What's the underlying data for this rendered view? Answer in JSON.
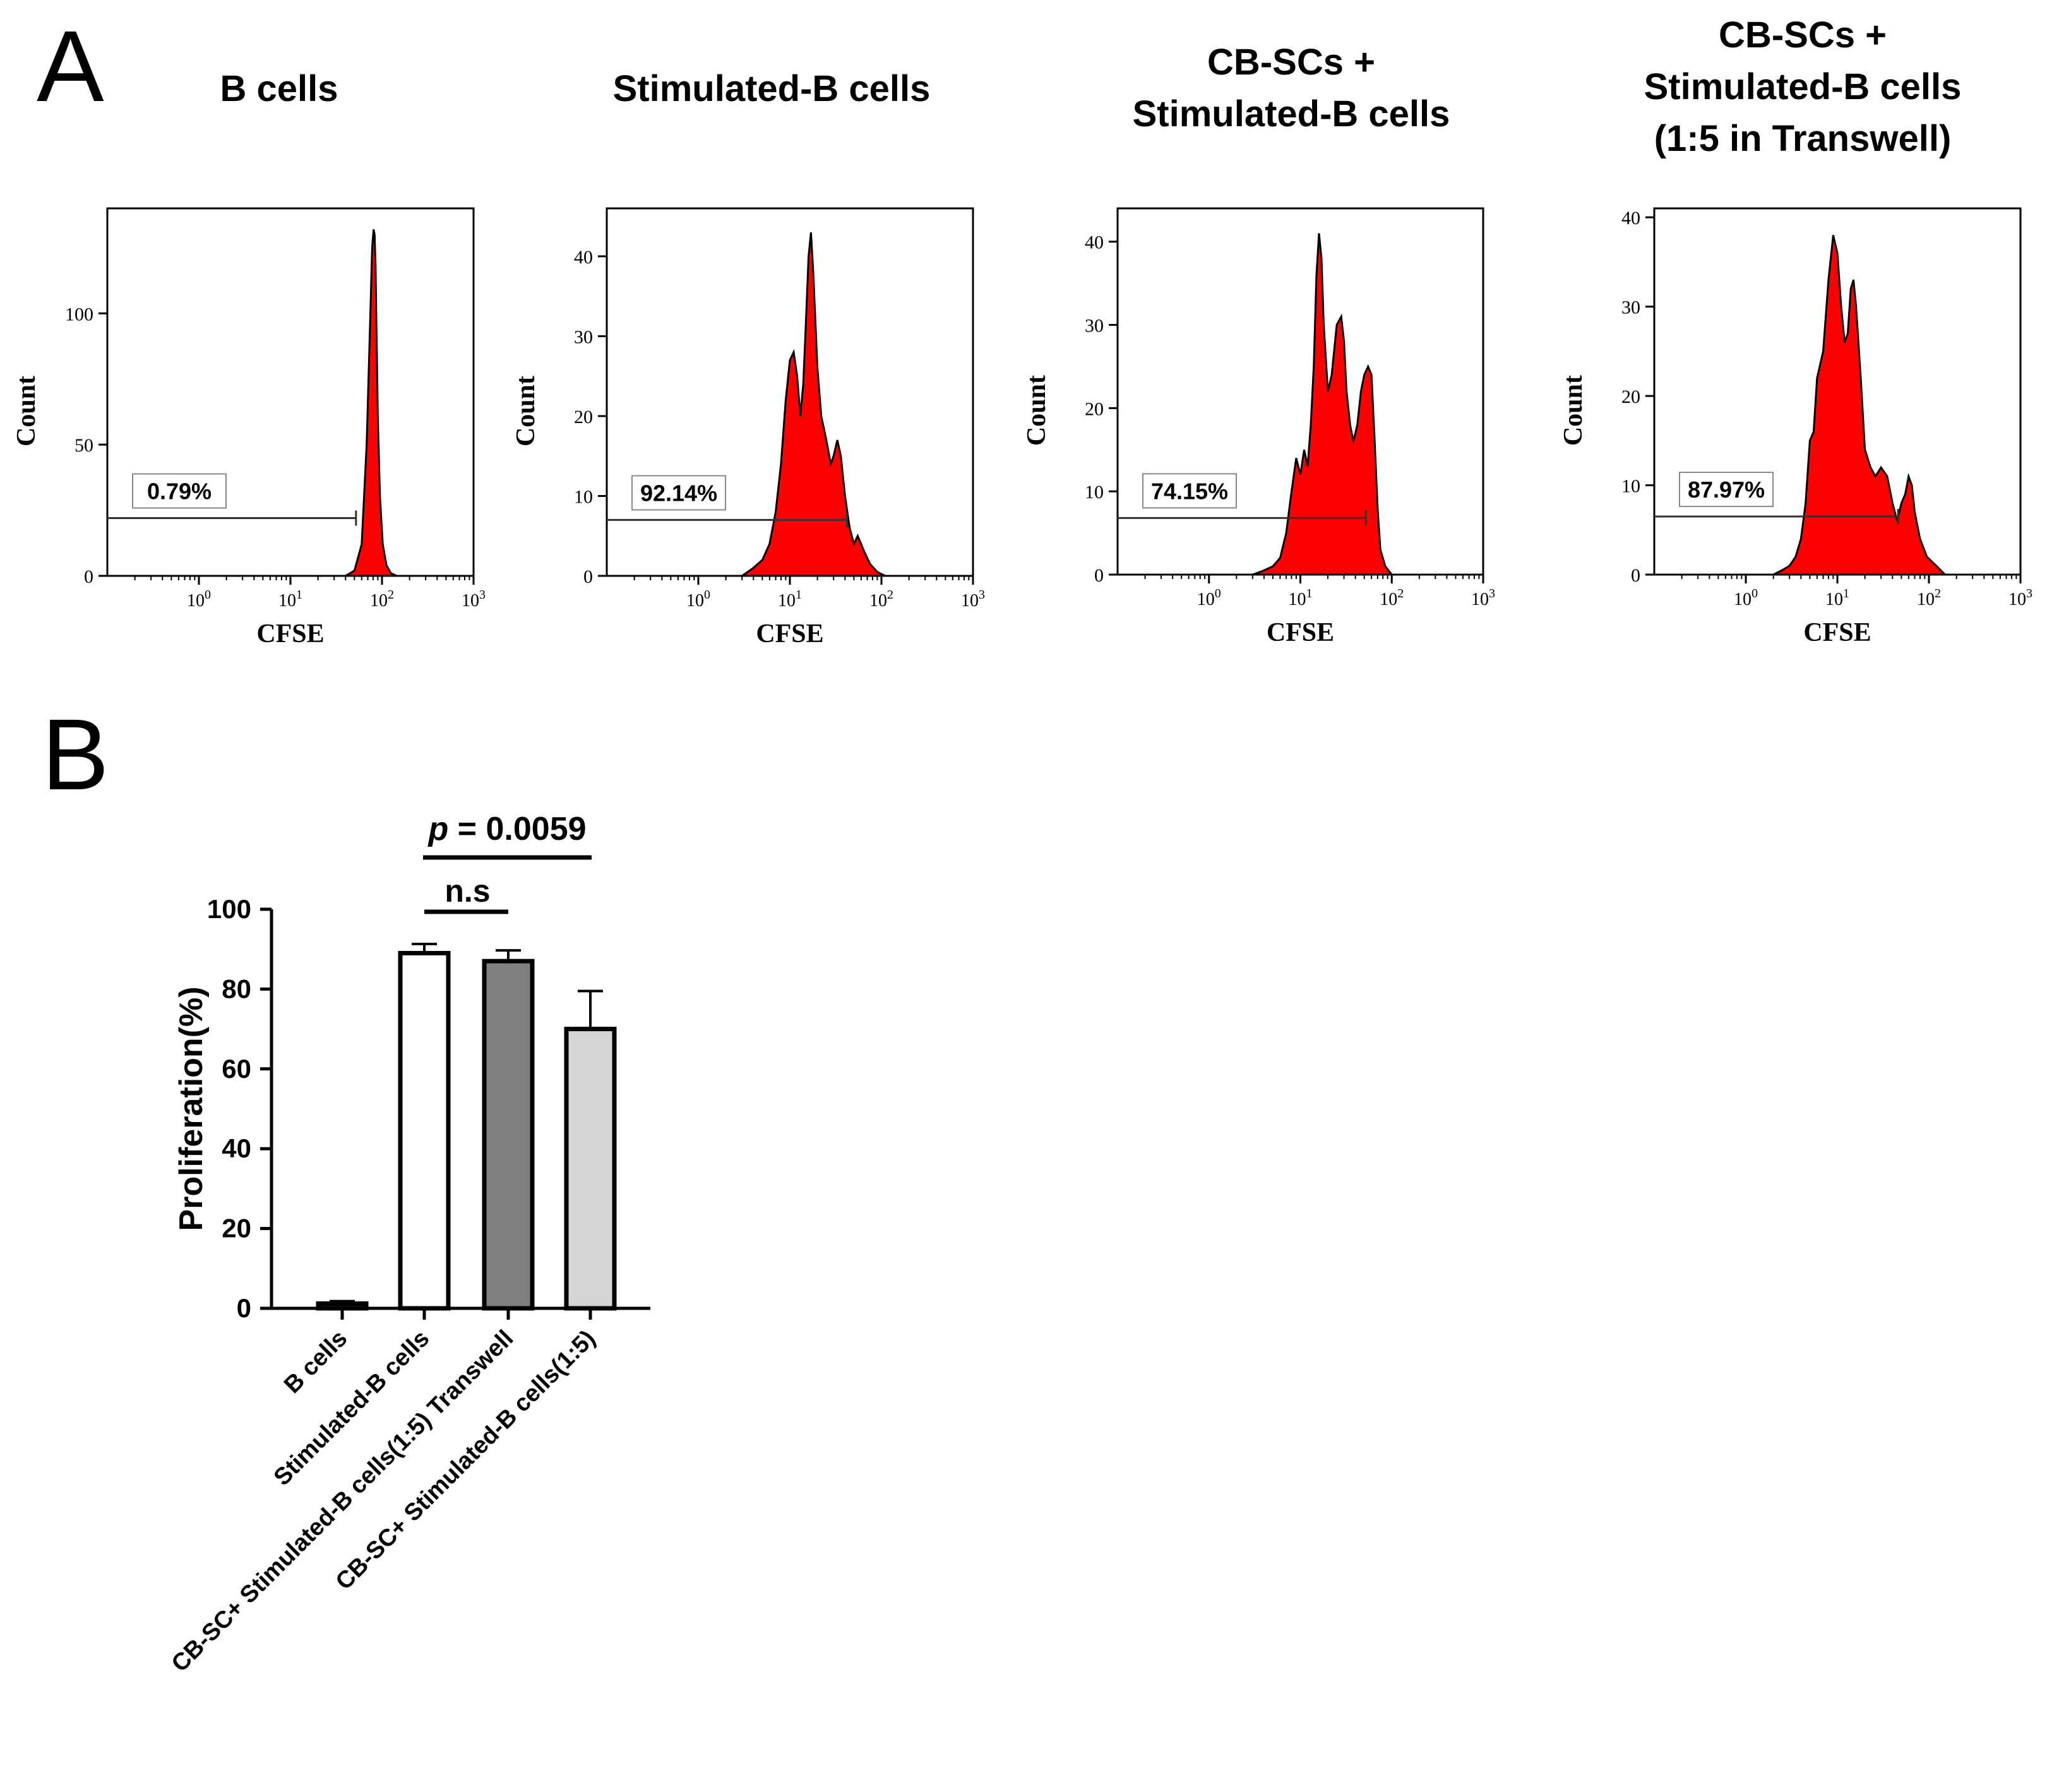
{
  "figure": {
    "panel_a_label": "A",
    "panel_b_label": "B"
  },
  "chart_data": [
    {
      "type": "area",
      "id": "hist1",
      "title": [
        "B cells"
      ],
      "xlabel": "CFSE",
      "ylabel": "Count",
      "x_scale": "log",
      "xlim": [
        0.1,
        1000
      ],
      "x_ticks": [
        1,
        10,
        100,
        1000
      ],
      "x_tick_labels": [
        [
          "10",
          "0"
        ],
        [
          "10",
          "1"
        ],
        [
          "10",
          "2"
        ],
        [
          "10",
          "3"
        ]
      ],
      "ylim": [
        0,
        140
      ],
      "y_ticks": [
        0,
        50,
        100
      ],
      "series": [
        {
          "name": "Count",
          "color": "#ff0000",
          "x": [
            40,
            50,
            60,
            68,
            74,
            78,
            81,
            83,
            85,
            87,
            90,
            95,
            102,
            112,
            125,
            145
          ],
          "y": [
            0,
            2,
            12,
            50,
            95,
            125,
            132,
            130,
            118,
            95,
            60,
            30,
            12,
            4,
            1,
            0
          ]
        }
      ],
      "gate": {
        "label": "0.79%",
        "x_start": 0.1,
        "x_end": 52,
        "y": 22
      }
    },
    {
      "type": "area",
      "id": "hist2",
      "title": [
        "Stimulated-B cells"
      ],
      "xlabel": "CFSE",
      "ylabel": "Count",
      "x_scale": "log",
      "xlim": [
        0.1,
        1000
      ],
      "x_ticks": [
        1,
        10,
        100,
        1000
      ],
      "x_tick_labels": [
        [
          "10",
          "0"
        ],
        [
          "10",
          "1"
        ],
        [
          "10",
          "2"
        ],
        [
          "10",
          "3"
        ]
      ],
      "ylim": [
        0,
        46
      ],
      "y_ticks": [
        0,
        10,
        20,
        30,
        40
      ],
      "series": [
        {
          "name": "Count",
          "color": "#ff0000",
          "x": [
            3,
            4,
            5,
            6,
            7,
            8,
            9,
            10,
            11,
            12,
            13,
            14,
            15,
            16,
            17,
            18,
            20,
            22,
            25,
            28,
            30,
            33,
            36,
            40,
            45,
            50,
            55,
            60,
            65,
            75,
            90,
            110
          ],
          "y": [
            0,
            1,
            2,
            4,
            8,
            14,
            22,
            27,
            28,
            25,
            20,
            24,
            32,
            40,
            43,
            38,
            26,
            20,
            17,
            14,
            15,
            17,
            15,
            10,
            6,
            4,
            5,
            4,
            3,
            1.5,
            0.5,
            0
          ]
        }
      ],
      "gate": {
        "label": "92.14%",
        "x_start": 0.1,
        "x_end": 42,
        "y": 7
      }
    },
    {
      "type": "area",
      "id": "hist3",
      "title": [
        "CB-SCs +",
        "Stimulated-B cells"
      ],
      "xlabel": "CFSE",
      "ylabel": "Count",
      "x_scale": "log",
      "xlim": [
        0.1,
        1000
      ],
      "x_ticks": [
        1,
        10,
        100,
        1000
      ],
      "x_tick_labels": [
        [
          "10",
          "0"
        ],
        [
          "10",
          "1"
        ],
        [
          "10",
          "2"
        ],
        [
          "10",
          "3"
        ]
      ],
      "ylim": [
        0,
        44
      ],
      "y_ticks": [
        0,
        10,
        20,
        30,
        40
      ],
      "series": [
        {
          "name": "Count",
          "color": "#ff0000",
          "x": [
            3,
            4,
            5,
            6,
            7,
            8,
            9,
            10,
            11,
            12,
            13,
            14,
            15,
            16,
            17,
            18,
            20,
            22,
            25,
            28,
            30,
            32,
            35,
            38,
            42,
            46,
            50,
            55,
            60,
            65,
            70,
            75,
            85,
            100
          ],
          "y": [
            0,
            0.5,
            1,
            2,
            5,
            10,
            14,
            12,
            15,
            13,
            18,
            25,
            36,
            41,
            38,
            30,
            22,
            24,
            30,
            31,
            28,
            22,
            18,
            16,
            18,
            22,
            24,
            25,
            24,
            16,
            8,
            3,
            1,
            0
          ]
        }
      ],
      "gate": {
        "label": "74.15%",
        "x_start": 0.1,
        "x_end": 52,
        "y": 6.8
      }
    },
    {
      "type": "area",
      "id": "hist4",
      "title": [
        "CB-SCs +",
        "Stimulated-B cells",
        "(1:5 in Transwell)"
      ],
      "xlabel": "CFSE",
      "ylabel": "Count",
      "x_scale": "log",
      "xlim": [
        0.1,
        1000
      ],
      "x_ticks": [
        1,
        10,
        100,
        1000
      ],
      "x_tick_labels": [
        [
          "10",
          "0"
        ],
        [
          "10",
          "1"
        ],
        [
          "10",
          "2"
        ],
        [
          "10",
          "3"
        ]
      ],
      "ylim": [
        0,
        41
      ],
      "y_ticks": [
        0,
        10,
        20,
        30,
        40
      ],
      "series": [
        {
          "name": "Count",
          "color": "#ff0000",
          "x": [
            2,
            2.5,
            3,
            3.5,
            4,
            4.5,
            5,
            5.5,
            6,
            7,
            8,
            9,
            10,
            11,
            12,
            13,
            14,
            15,
            16,
            18,
            20,
            23,
            26,
            30,
            35,
            40,
            45,
            50,
            55,
            60,
            65,
            70,
            80,
            95,
            120,
            150
          ],
          "y": [
            0,
            0.5,
            1,
            2,
            4,
            8,
            15,
            16,
            22,
            25,
            33,
            38,
            36,
            30,
            26,
            27,
            32,
            33,
            30,
            22,
            14,
            12,
            11,
            12,
            11,
            8,
            6,
            8,
            9,
            11,
            10,
            7,
            4,
            2,
            1,
            0
          ]
        }
      ],
      "gate": {
        "label": "87.97%",
        "x_start": 0.1,
        "x_end": 46,
        "y": 6.5
      }
    },
    {
      "type": "bar",
      "id": "barchart",
      "title": "",
      "ylabel": "Proliferation(%)",
      "ylim": [
        0,
        100
      ],
      "y_ticks": [
        0,
        20,
        40,
        60,
        80,
        100
      ],
      "categories": [
        "B cells",
        "Stimulated-B cells",
        "CB-SC+ Stimulated-B cells(1:5) Transwell",
        "CB-SC+ Stimulated-B cells(1:5)"
      ],
      "values": [
        1.2,
        89,
        87,
        70
      ],
      "errors": [
        0.6,
        2.3,
        2.7,
        9.5
      ],
      "colors": [
        "#222222",
        "#ffffff",
        "#7f7f7f",
        "#d4d4d4"
      ],
      "annotations": [
        {
          "label": "p = 0.0059",
          "p_symbol": "p",
          "p_rest": " = 0.0059",
          "from": 1,
          "to": 3
        },
        {
          "label": "n.s",
          "from": 1,
          "to": 2
        }
      ]
    }
  ]
}
